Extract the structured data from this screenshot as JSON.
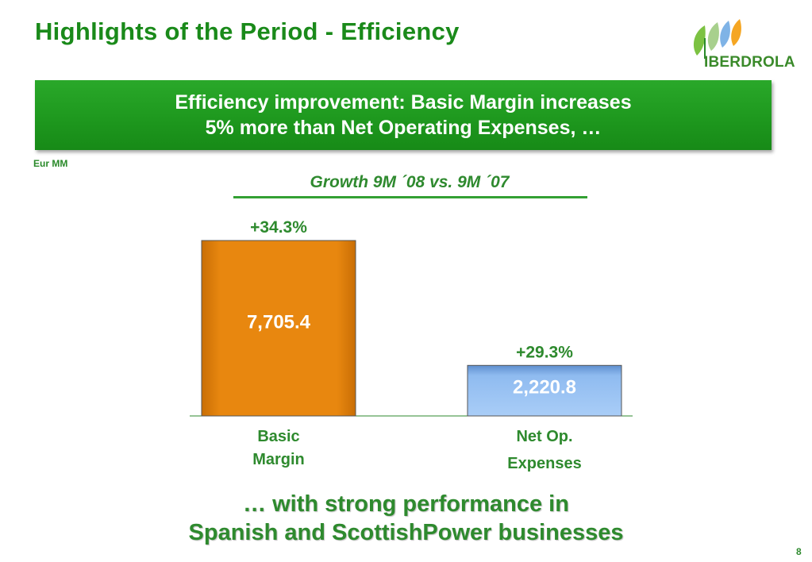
{
  "slide": {
    "title": "Highlights of the Period - Efficiency",
    "brand": "IBERDROLA",
    "banner_line1": "Efficiency improvement: Basic Margin increases",
    "banner_line2": "5% more than Net Operating Expenses, …",
    "unit": "Eur MM",
    "growth_label": "Growth 9M ´08 vs. 9M ´07",
    "bottom_line1": "… with strong performance in",
    "bottom_line2": "Spanish and ScottishPower businesses",
    "page_number": "8"
  },
  "colors": {
    "title_green": "#1a8a1a",
    "banner_green": "#1f9a1f",
    "bar_orange": "#e8870f",
    "bar_blue": "#8fbbf0"
  },
  "chart_data": {
    "type": "bar",
    "categories": [
      [
        "Basic",
        "Margin"
      ],
      [
        "Net Op.",
        "Expenses"
      ]
    ],
    "values": [
      7705.4,
      2220.8
    ],
    "value_labels": [
      "7,705.4",
      "2,220.8"
    ],
    "growth_labels": [
      "+34.3%",
      "+29.3%"
    ],
    "colors": [
      "#e8870f",
      "#8fbbf0"
    ],
    "title": "",
    "xlabel": "",
    "ylabel": "",
    "ylim": [
      0,
      7705.4
    ],
    "grid": false,
    "legend": "none"
  }
}
